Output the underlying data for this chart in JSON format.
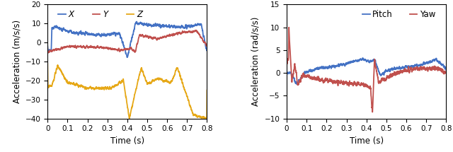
{
  "left_ylim": [
    -40,
    20
  ],
  "left_yticks": [
    -40,
    -30,
    -20,
    -10,
    0,
    10,
    20
  ],
  "right_ylim": [
    -10,
    15
  ],
  "right_yticks": [
    -10,
    -5,
    0,
    5,
    10,
    15
  ],
  "xlim": [
    0,
    0.8
  ],
  "xticks": [
    0,
    0.1,
    0.2,
    0.3,
    0.4,
    0.5,
    0.6,
    0.7,
    0.8
  ],
  "xlabel": "Time (s)",
  "left_ylabel": "Acceleration (m/s/s)",
  "right_ylabel": "Acceleration (rad/s/s)",
  "color_X": "#4472C4",
  "color_Y": "#C0504D",
  "color_Z": "#E6A817",
  "color_Pitch": "#4472C4",
  "color_Yaw": "#C0504D",
  "linewidth": 1.3,
  "legend_fontsize": 8.5,
  "tick_fontsize": 7.5,
  "label_fontsize": 8.5
}
